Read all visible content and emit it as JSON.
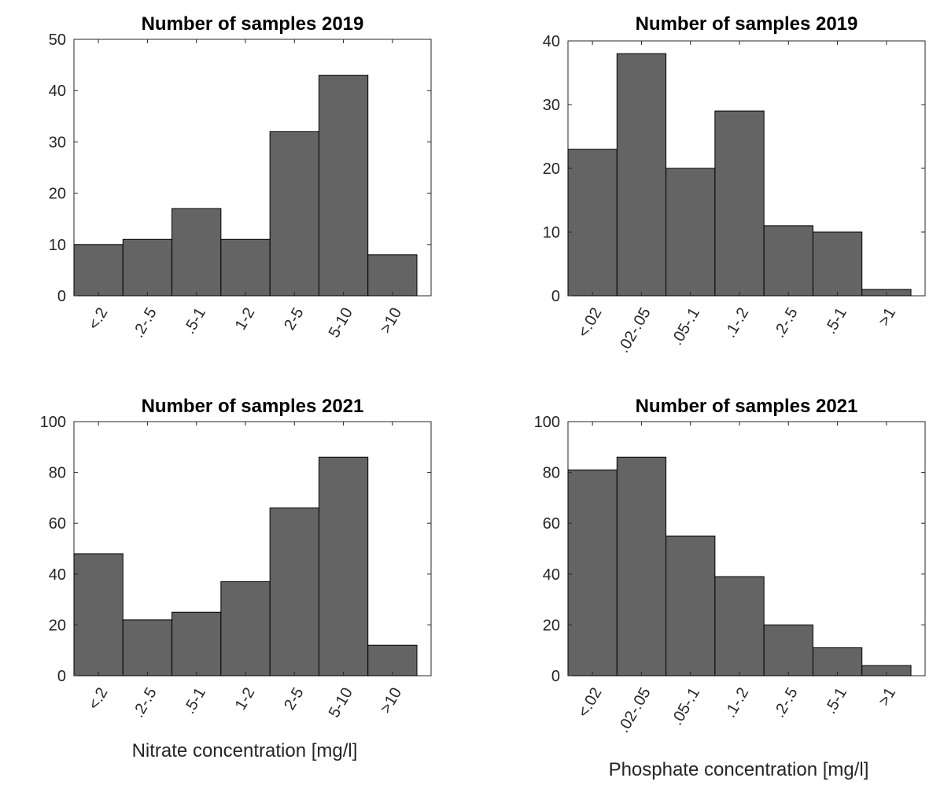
{
  "colors": {
    "bar_fill": "#646464",
    "bar_edge": "#000000",
    "axis": "#262626",
    "background": "#ffffff"
  },
  "chart_data": [
    {
      "type": "bar",
      "title": "Number of samples 2019",
      "categories": [
        "<.2",
        ".2-.5",
        ".5-1",
        "1-2",
        "2-5",
        "5-10",
        ">10"
      ],
      "values": [
        10,
        11,
        17,
        11,
        32,
        43,
        8
      ],
      "ylim": [
        0,
        50
      ],
      "yticks": [
        0,
        10,
        20,
        30,
        40,
        50
      ],
      "xlabel": "",
      "ylabel": ""
    },
    {
      "type": "bar",
      "title": "Number of samples 2019",
      "categories": [
        "<.02",
        ".02-.05",
        ".05-.1",
        ".1-.2",
        ".2-.5",
        ".5-1",
        ">1"
      ],
      "values": [
        23,
        38,
        20,
        29,
        11,
        10,
        1
      ],
      "ylim": [
        0,
        40
      ],
      "yticks": [
        0,
        10,
        20,
        30,
        40
      ],
      "xlabel": "",
      "ylabel": ""
    },
    {
      "type": "bar",
      "title": "Number of samples 2021",
      "categories": [
        "<.2",
        ".2-.5",
        ".5-1",
        "1-2",
        "2-5",
        "5-10",
        ">10"
      ],
      "values": [
        48,
        22,
        25,
        37,
        66,
        86,
        12
      ],
      "ylim": [
        0,
        100
      ],
      "yticks": [
        0,
        20,
        40,
        60,
        80,
        100
      ],
      "xlabel": "Nitrate concentration [mg/l]",
      "ylabel": ""
    },
    {
      "type": "bar",
      "title": "Number of samples 2021",
      "categories": [
        "<.02",
        ".02-.05",
        ".05-.1",
        ".1-.2",
        ".2-.5",
        ".5-1",
        ">1"
      ],
      "values": [
        81,
        86,
        55,
        39,
        20,
        11,
        4
      ],
      "ylim": [
        0,
        100
      ],
      "yticks": [
        0,
        20,
        40,
        60,
        80,
        100
      ],
      "xlabel": "Phosphate concentration [mg/l]",
      "ylabel": ""
    }
  ]
}
